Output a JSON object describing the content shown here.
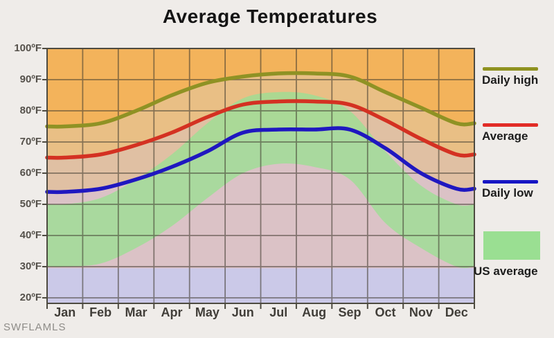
{
  "watermark": "SWFLAMLS",
  "chart_data": {
    "type": "line",
    "title": "Average Temperatures",
    "categories": [
      "Jan",
      "Feb",
      "Mar",
      "Apr",
      "May",
      "Jun",
      "Jul",
      "Aug",
      "Sep",
      "Oct",
      "Nov",
      "Dec"
    ],
    "series": [
      {
        "name": "Daily high",
        "color": "#8F9224",
        "values": [
          75,
          76,
          80,
          85,
          89,
          91,
          92,
          92,
          91,
          86,
          81,
          76
        ]
      },
      {
        "name": "Average",
        "color": "#D43122",
        "values": [
          65,
          66,
          69,
          73,
          78,
          82,
          83,
          83,
          82,
          77,
          71,
          66
        ]
      },
      {
        "name": "Daily low",
        "color": "#1F17C0",
        "values": [
          54,
          55,
          58,
          62,
          67,
          73,
          74,
          74,
          74,
          68,
          60,
          55
        ]
      }
    ],
    "band": {
      "name": "US average",
      "color": "#9CDE94",
      "opacity": 0.8,
      "top": [
        50,
        52,
        58,
        66,
        76,
        84,
        86,
        85,
        80,
        67,
        56,
        50
      ],
      "bottom": [
        30,
        31,
        36,
        43,
        52,
        60,
        63,
        62,
        58,
        44,
        36,
        30
      ]
    },
    "y_ticks": [
      {
        "temp": 100,
        "label": "100ºF"
      },
      {
        "temp": 90,
        "label": "90ºF"
      },
      {
        "temp": 80,
        "label": "80ºF"
      },
      {
        "temp": 70,
        "label": "70ºF"
      },
      {
        "temp": 60,
        "label": "60ºF"
      },
      {
        "temp": 50,
        "label": "50ºF"
      },
      {
        "temp": 40,
        "label": "40ºF"
      },
      {
        "temp": 30,
        "label": "30ºF"
      },
      {
        "temp": 20,
        "label": "20ºF"
      }
    ],
    "ylim": [
      18.4,
      100
    ],
    "grid": true,
    "legend_position": "right",
    "legend": {
      "items": [
        {
          "label": "Daily high",
          "type": "line",
          "color": "#8F9220"
        },
        {
          "label": "Average",
          "type": "line",
          "color": "#E22C26"
        },
        {
          "label": "Daily low",
          "type": "line",
          "color": "#1716C4"
        },
        {
          "label": "US average",
          "type": "box",
          "color": "#9ADF92"
        }
      ]
    },
    "background_layers": {
      "plot_bg_orange": "#F3B35B",
      "below_high_fill": "#E9BF85",
      "below_average_fill": "#E0C0A3",
      "below_low_fill": "#DBC2C6",
      "freezing_band_fill": "#CBC9E8",
      "freezing_band_top_temp": 29.5,
      "grid_color": "rgba(64,58,46,0.58)",
      "border_color": "#4D4A40"
    }
  }
}
